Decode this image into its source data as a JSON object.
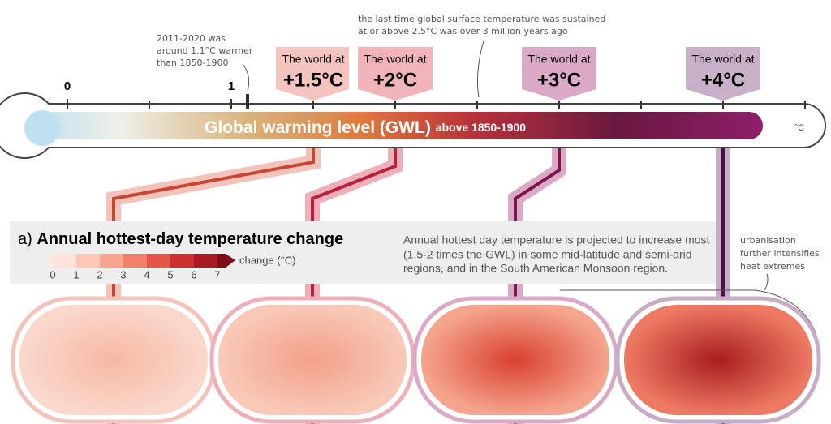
{
  "scale": {
    "labels": [
      "0",
      "1"
    ]
  },
  "thermometer": {
    "title": "Global warming level (GWL)",
    "subtitle": "above 1850-1900",
    "unit": "°C"
  },
  "callouts": [
    {
      "prefix": "The world at",
      "level": "+1.5°C"
    },
    {
      "prefix": "The world at",
      "level": "+2°C"
    },
    {
      "prefix": "The world at",
      "level": "+3°C"
    },
    {
      "prefix": "The world at",
      "level": "+4°C"
    }
  ],
  "annotations": {
    "observed": [
      "2011-2020 was",
      "around 1.1°C warmer",
      "than 1850-1900"
    ],
    "paleo": [
      "the last time global surface temperature was sustained",
      "at or above 2.5°C was over 3 million years ago"
    ],
    "urban": [
      "urbanisation",
      "further intensifies",
      "heat extremes"
    ]
  },
  "panel": {
    "label": "a)",
    "title": "Annual hottest-day temperature change",
    "description": [
      "Annual hottest day temperature is projected to increase most",
      "(1.5-2 times the GWL) in some mid-latitude and semi-arid",
      "regions, and in the South American Monsoon region."
    ],
    "legend_title": "change (°C)",
    "legend_ticks": [
      "0",
      "1",
      "2",
      "3",
      "4",
      "5",
      "6",
      "7"
    ]
  }
}
